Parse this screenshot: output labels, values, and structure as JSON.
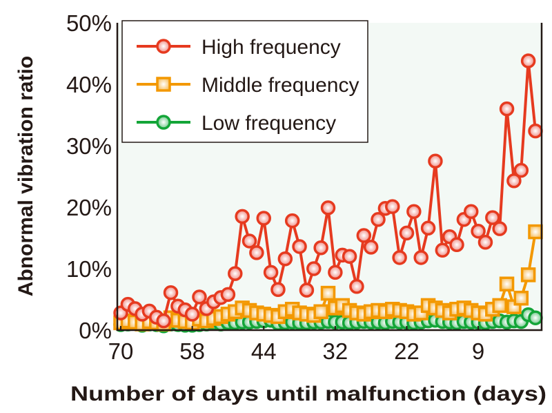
{
  "chart_data": {
    "type": "line",
    "title": "",
    "xlabel": "Number of days until malfunction (days)",
    "ylabel": "Abnormal vibration ratio",
    "ylim": [
      0,
      50
    ],
    "y_ticks": [
      "0%",
      "10%",
      "20%",
      "30%",
      "40%",
      "50%"
    ],
    "x_ticks": [
      {
        "index": 0,
        "label": "70"
      },
      {
        "index": 10,
        "label": "58"
      },
      {
        "index": 20,
        "label": "44"
      },
      {
        "index": 30,
        "label": "32"
      },
      {
        "index": 40,
        "label": "22"
      },
      {
        "index": 50,
        "label": "9"
      }
    ],
    "grid": false,
    "legend": "top-left",
    "background": "#f3f9f5",
    "series": [
      {
        "name": "High frequency",
        "color": "#e63a1f",
        "marker": "circle",
        "values": [
          2.8,
          4.2,
          3.5,
          2.6,
          3.1,
          2.1,
          1.5,
          6.1,
          3.9,
          3.3,
          2.6,
          5.4,
          3.5,
          4.6,
          5.3,
          5.8,
          9.2,
          18.5,
          14.5,
          12.6,
          18.2,
          9.4,
          6.6,
          11.6,
          17.8,
          13.6,
          6.5,
          10.0,
          13.4,
          19.9,
          9.4,
          12.2,
          12.0,
          7.1,
          15.4,
          13.5,
          18.0,
          19.8,
          20.1,
          11.8,
          15.8,
          19.3,
          11.8,
          16.6,
          27.5,
          13.0,
          15.2,
          13.9,
          18.0,
          19.3,
          16.1,
          14.3,
          18.3,
          16.5,
          36.0,
          24.3,
          26.0,
          43.8,
          32.4
        ]
      },
      {
        "name": "Middle frequency",
        "color": "#f39800",
        "marker": "square",
        "values": [
          1.2,
          1.5,
          1.3,
          1.0,
          1.4,
          1.2,
          1.0,
          2.0,
          1.6,
          1.4,
          1.2,
          1.8,
          1.5,
          1.9,
          2.2,
          2.6,
          3.0,
          3.6,
          3.2,
          2.8,
          2.6,
          2.4,
          2.2,
          3.0,
          3.4,
          2.8,
          2.6,
          2.4,
          3.0,
          6.0,
          3.6,
          4.0,
          3.2,
          2.8,
          2.6,
          3.0,
          3.2,
          3.0,
          3.4,
          3.2,
          3.0,
          2.6,
          2.8,
          4.0,
          3.6,
          3.2,
          2.8,
          3.4,
          3.6,
          3.2,
          2.8,
          2.6,
          3.4,
          4.0,
          7.5,
          3.8,
          5.2,
          9.0,
          16.0
        ]
      },
      {
        "name": "Low frequency",
        "color": "#13a538",
        "marker": "circle",
        "values": [
          0.9,
          1.0,
          1.1,
          0.8,
          1.0,
          0.9,
          0.7,
          1.0,
          0.9,
          0.8,
          0.8,
          0.9,
          1.0,
          1.1,
          1.0,
          1.2,
          1.2,
          1.3,
          1.3,
          1.4,
          1.5,
          1.6,
          1.1,
          1.2,
          1.3,
          1.2,
          1.2,
          1.3,
          1.3,
          1.4,
          1.3,
          1.3,
          1.2,
          1.3,
          1.4,
          1.3,
          1.3,
          1.2,
          1.4,
          1.3,
          1.3,
          1.2,
          1.3,
          1.5,
          1.6,
          1.4,
          1.3,
          1.2,
          1.4,
          1.3,
          1.3,
          1.2,
          1.4,
          1.5,
          1.3,
          1.5,
          1.4,
          2.5,
          2.0
        ]
      }
    ]
  }
}
